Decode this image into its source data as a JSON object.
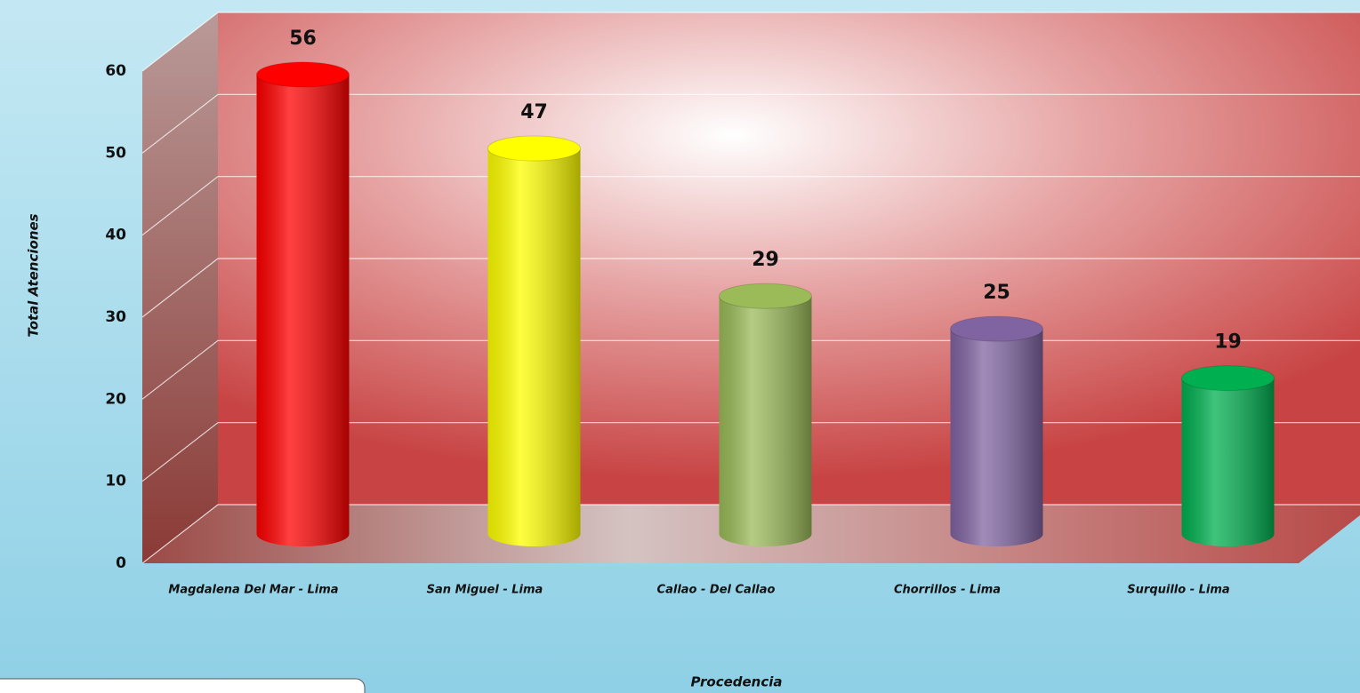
{
  "chart_data": {
    "type": "bar3d",
    "categories": [
      "Magdalena Del Mar - Lima",
      "San Miguel - Lima",
      "Callao - Del Callao",
      "Chorrillos - Lima",
      "Surquillo - Lima"
    ],
    "values": [
      56,
      47,
      29,
      25,
      19
    ],
    "colors": [
      "#ff0000",
      "#ffff00",
      "#9bbb59",
      "#8064a2",
      "#00b050"
    ],
    "xlabel": "Procedencia",
    "ylabel": "Total Atenciones",
    "ylim": [
      0,
      60
    ],
    "yticks": [
      0,
      10,
      20,
      30,
      40,
      50,
      60
    ],
    "grid": true
  }
}
